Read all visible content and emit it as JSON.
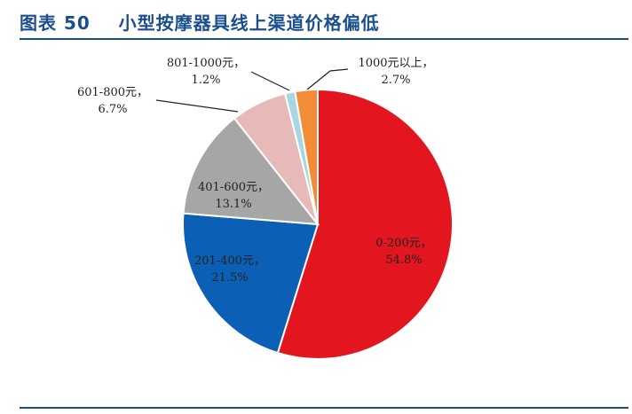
{
  "header": {
    "figure_label": "图表 50",
    "title": "小型按摩器具线上渠道价格偏低"
  },
  "chart_data": {
    "type": "pie",
    "title": "小型按摩器具线上渠道价格偏低",
    "slices": [
      {
        "label": "0-200元",
        "value": 54.8,
        "value_text": "54.8%",
        "color": "#e3151e"
      },
      {
        "label": "201-400元",
        "value": 21.5,
        "value_text": "21.5%",
        "color": "#0b5fb4"
      },
      {
        "label": "401-600元",
        "value": 13.1,
        "value_text": "13.1%",
        "color": "#a6a6a6"
      },
      {
        "label": "601-800元",
        "value": 6.7,
        "value_text": "6.7%",
        "color": "#e8b9b9"
      },
      {
        "label": "801-1000元",
        "value": 1.2,
        "value_text": "1.2%",
        "color": "#a8d6e3"
      },
      {
        "label": "1000元以上",
        "value": 2.7,
        "value_text": "2.7%",
        "color": "#f28c36"
      }
    ]
  }
}
